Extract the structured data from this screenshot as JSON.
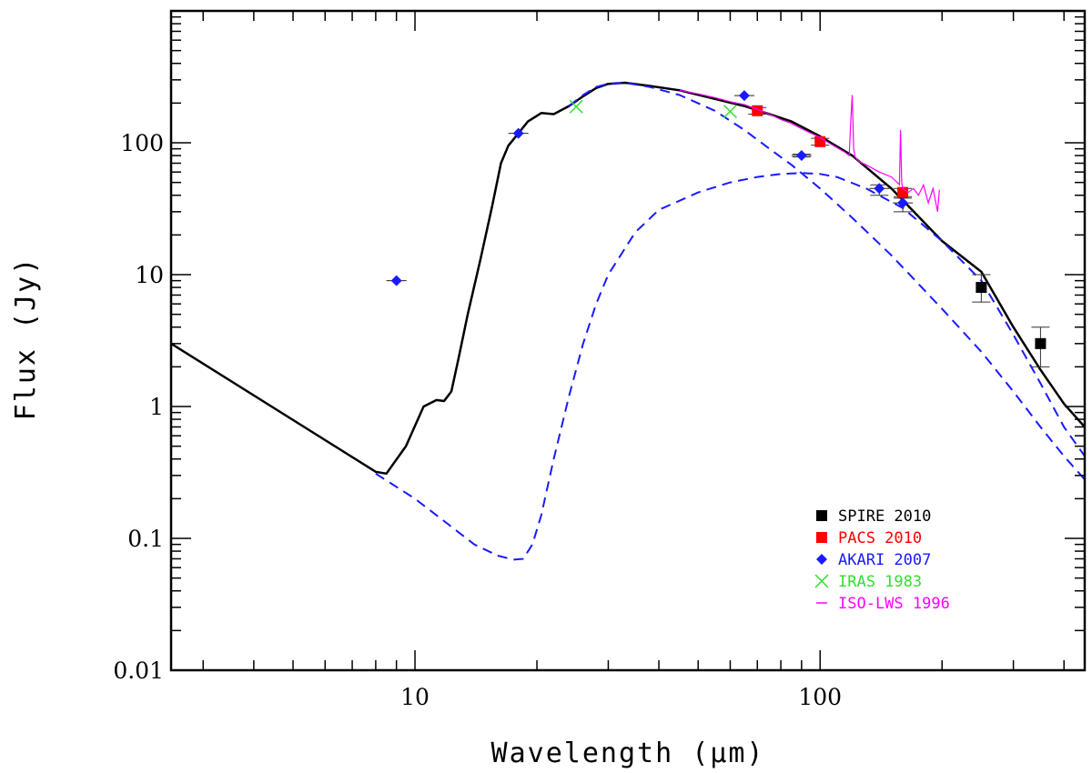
{
  "chart_data": {
    "type": "scatter",
    "xlabel": "Wavelength (μm)",
    "ylabel": "Flux (Jy)",
    "x_scale": "log",
    "y_scale": "log",
    "xlim": [
      2.5,
      450
    ],
    "ylim": [
      0.01,
      1000
    ],
    "x_tick_labels": [
      {
        "value": 10,
        "label": "10"
      },
      {
        "value": 100,
        "label": "100"
      }
    ],
    "y_tick_labels": [
      {
        "value": 0.01,
        "label": "0.01"
      },
      {
        "value": 0.1,
        "label": "0.1"
      },
      {
        "value": 1,
        "label": "1"
      },
      {
        "value": 10,
        "label": "10"
      },
      {
        "value": 100,
        "label": "100"
      }
    ],
    "grid": false,
    "legend_position": "bottom-right",
    "model_curves": [
      {
        "style": "solid",
        "color": "#000000",
        "x": [
          2.5,
          8.0,
          8.5,
          9.5,
          10.5,
          11.3,
          11.8,
          12.3,
          12.8,
          13.5,
          14.5,
          15.5,
          16.3,
          17.0,
          18.0,
          19.0,
          20.5,
          22.0,
          24.0,
          26.0,
          28.0,
          30.0,
          33.0,
          38.0,
          45.0,
          55.0,
          65.0,
          75.0,
          85.0,
          100.0,
          120.0,
          150.0,
          200.0,
          250.0,
          300.0,
          350.0,
          400.0,
          450.0
        ],
        "y": [
          3.0,
          0.32,
          0.31,
          0.5,
          1.0,
          1.12,
          1.1,
          1.3,
          2.3,
          5.0,
          13.0,
          33.0,
          70.0,
          95.0,
          118.0,
          145.0,
          168.0,
          165.0,
          190.0,
          225.0,
          260.0,
          280.0,
          285.0,
          270.0,
          250.0,
          215.0,
          190.0,
          165.0,
          145.0,
          112.0,
          80.0,
          45.0,
          18.0,
          10.5,
          4.0,
          1.9,
          1.05,
          0.7
        ]
      },
      {
        "style": "dashed",
        "color": "#1a1aff",
        "x": [
          8.0,
          10.0,
          12.0,
          14.0,
          16.0,
          17.5,
          18.5,
          19.5,
          20.5,
          22.0,
          24.0,
          26.0,
          28.0,
          30.0,
          35.0,
          40.0,
          50.0,
          60.0,
          70.0,
          80.0,
          90.0,
          100.0,
          110.0,
          130.0,
          160.0,
          200.0,
          250.0,
          300.0,
          350.0,
          400.0,
          450.0
        ],
        "y": [
          0.31,
          0.2,
          0.13,
          0.09,
          0.074,
          0.069,
          0.07,
          0.09,
          0.15,
          0.4,
          1.2,
          3.0,
          6.0,
          10.0,
          21.0,
          31.0,
          42.0,
          50.0,
          55.0,
          58.0,
          59.0,
          58.0,
          55.0,
          45.0,
          32.0,
          18.0,
          9.0,
          3.5,
          1.5,
          0.7,
          0.42
        ]
      },
      {
        "style": "dashed",
        "color": "#1a1aff",
        "x": [
          24.0,
          26.0,
          28.0,
          30.0,
          33.0,
          38.0,
          45.0,
          55.0,
          65.0,
          75.0,
          85.0,
          100.0,
          120.0,
          150.0,
          200.0,
          250.0,
          300.0,
          350.0,
          400.0,
          450.0
        ],
        "y": [
          190.0,
          230.0,
          265.0,
          280.0,
          285.0,
          265.0,
          230.0,
          175.0,
          125.0,
          90.0,
          68.0,
          45.0,
          27.0,
          14.0,
          5.5,
          2.6,
          1.3,
          0.7,
          0.42,
          0.28
        ]
      }
    ],
    "series": [
      {
        "name": "SPIRE 2010",
        "marker": "square",
        "color": "#000000",
        "x": [
          250,
          350
        ],
        "y": [
          8.0,
          3.0
        ],
        "yerr_low": [
          6.2,
          2.0
        ],
        "yerr_high": [
          10.0,
          4.0
        ]
      },
      {
        "name": "PACS 2010",
        "marker": "square",
        "color": "#ff0000",
        "x": [
          70,
          100,
          160
        ],
        "y": [
          175,
          102,
          42
        ],
        "yerr_low": [
          165,
          96,
          39
        ],
        "yerr_high": [
          185,
          108,
          45
        ]
      },
      {
        "name": "AKARI 2007",
        "marker": "diamond",
        "color": "#1a1aff",
        "x": [
          9,
          18,
          65,
          90,
          140,
          160
        ],
        "y": [
          9.0,
          118,
          228,
          80,
          45,
          35
        ],
        "yerr_low": [
          9.0,
          118,
          228,
          78,
          40,
          30
        ],
        "yerr_high": [
          9.0,
          118,
          228,
          82,
          48,
          38
        ]
      },
      {
        "name": "IRAS 1983",
        "marker": "x",
        "color": "#33dd33",
        "x": [
          25,
          60
        ],
        "y": [
          188,
          173
        ]
      },
      {
        "name": "ISO-LWS 1996",
        "marker": "line",
        "color": "#ff00ff",
        "x": [
          45,
          50,
          55,
          60,
          65,
          70,
          75,
          80,
          85,
          90,
          95,
          100,
          105,
          110,
          115,
          118,
          119,
          120,
          121,
          122,
          125,
          130,
          140,
          150,
          155,
          157,
          158,
          159,
          160,
          165,
          170,
          175,
          180,
          185,
          190,
          195,
          197
        ],
        "y": [
          250,
          235,
          220,
          205,
          195,
          180,
          165,
          150,
          140,
          128,
          118,
          110,
          100,
          92,
          85,
          80,
          140,
          230,
          90,
          78,
          72,
          68,
          60,
          55,
          50,
          48,
          125,
          50,
          45,
          42,
          45,
          40,
          48,
          35,
          45,
          30,
          44
        ]
      }
    ]
  }
}
